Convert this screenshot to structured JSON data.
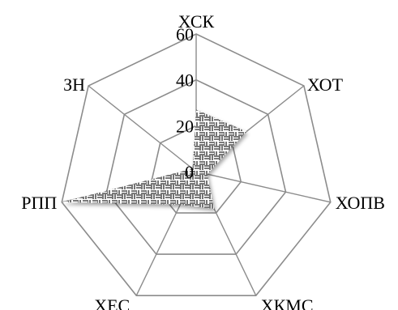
{
  "chart_data": {
    "type": "radar",
    "categories": [
      "ХСК",
      "ХОТ",
      "ХОПВ",
      "ХКМС",
      "ХЕС",
      "РПП",
      "ЗН"
    ],
    "series": [
      {
        "values": [
          27,
          28,
          5,
          18,
          16,
          60,
          2
        ],
        "fill_pattern": "black-white op-art hatching"
      }
    ],
    "rlim": [
      0,
      60
    ],
    "ticks": [
      0,
      20,
      40,
      60
    ],
    "tick_labels": [
      "0",
      "20",
      "40",
      "60"
    ],
    "grid": true,
    "grid_color": "#8c8c8c",
    "fill_primary_color": "#2b2b2b",
    "fill_secondary_color": "#ffffff"
  }
}
